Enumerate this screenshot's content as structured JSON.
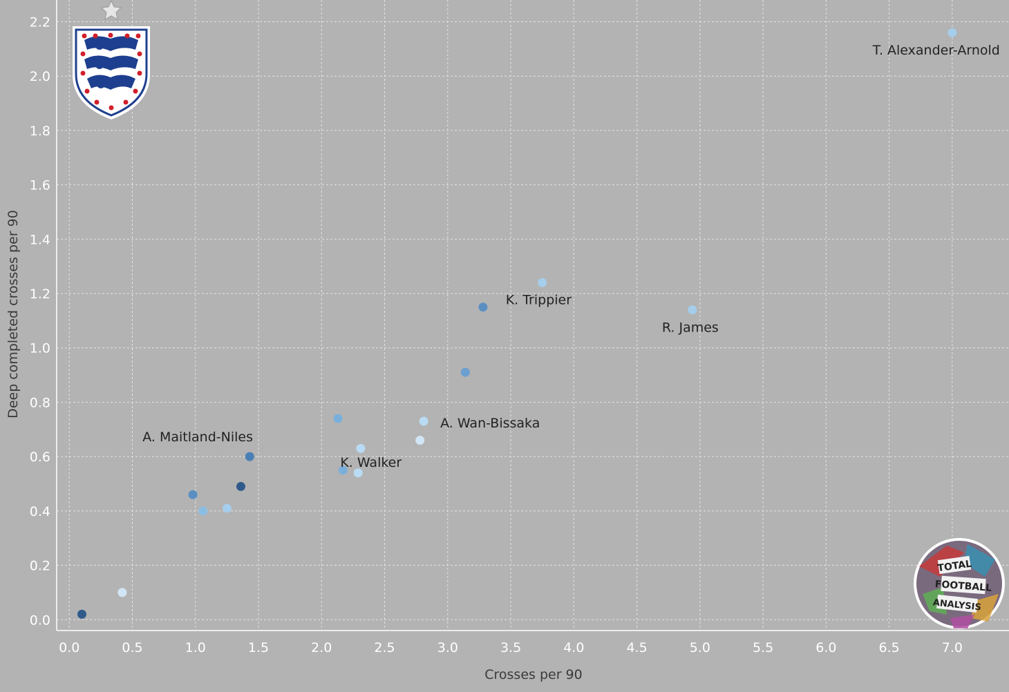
{
  "chart_data": {
    "type": "scatter",
    "xlabel": "Crosses per 90",
    "ylabel": "Deep completed crosses per 90",
    "xlim": [
      -0.1,
      7.45
    ],
    "ylim": [
      -0.04,
      2.28
    ],
    "x_ticks": [
      "0.0",
      "0.5",
      "1.0",
      "1.5",
      "2.0",
      "2.5",
      "3.0",
      "3.5",
      "4.0",
      "4.5",
      "5.0",
      "5.5",
      "6.0",
      "6.5",
      "7.0"
    ],
    "y_ticks": [
      "0.0",
      "0.2",
      "0.4",
      "0.6",
      "0.8",
      "1.0",
      "1.2",
      "1.4",
      "1.6",
      "1.8",
      "2.0",
      "2.2"
    ],
    "grid": true,
    "points": [
      {
        "x": 0.1,
        "y": 0.02,
        "color": "#2f5a8a"
      },
      {
        "x": 0.42,
        "y": 0.1,
        "color": "#d0e6f6"
      },
      {
        "x": 0.98,
        "y": 0.46,
        "color": "#5b8fc2"
      },
      {
        "x": 1.06,
        "y": 0.4,
        "color": "#8cbde3"
      },
      {
        "x": 1.25,
        "y": 0.41,
        "color": "#a5cdec"
      },
      {
        "x": 1.36,
        "y": 0.49,
        "color": "#2f5a8a"
      },
      {
        "x": 1.43,
        "y": 0.6,
        "color": "#4a7fb5",
        "label": "A. Maitland-Niles"
      },
      {
        "x": 2.13,
        "y": 0.74,
        "color": "#7aafdc"
      },
      {
        "x": 2.17,
        "y": 0.55,
        "color": "#7aafdc",
        "label": "K. Walker"
      },
      {
        "x": 2.29,
        "y": 0.54,
        "color": "#b9dbf3"
      },
      {
        "x": 2.31,
        "y": 0.63,
        "color": "#b9dbf3"
      },
      {
        "x": 2.78,
        "y": 0.66,
        "color": "#d0e6f6"
      },
      {
        "x": 2.81,
        "y": 0.73,
        "color": "#b9dbf3",
        "label": "A. Wan-Bissaka"
      },
      {
        "x": 3.14,
        "y": 0.91,
        "color": "#6b9fcf"
      },
      {
        "x": 3.28,
        "y": 1.15,
        "color": "#5b8fc2"
      },
      {
        "x": 3.75,
        "y": 1.24,
        "color": "#a5cdec",
        "label": "K. Trippier"
      },
      {
        "x": 4.94,
        "y": 1.14,
        "color": "#a5cdec",
        "label": "R. James"
      },
      {
        "x": 7.0,
        "y": 2.16,
        "color": "#a5cdec",
        "label": "T. Alexander-Arnold"
      }
    ]
  },
  "logos": {
    "badge": "england-three-lions-crest",
    "watermark": "total-football-analysis",
    "watermark_text": [
      "TOTAL",
      "FOOTBALL",
      "ANALYSIS"
    ]
  }
}
